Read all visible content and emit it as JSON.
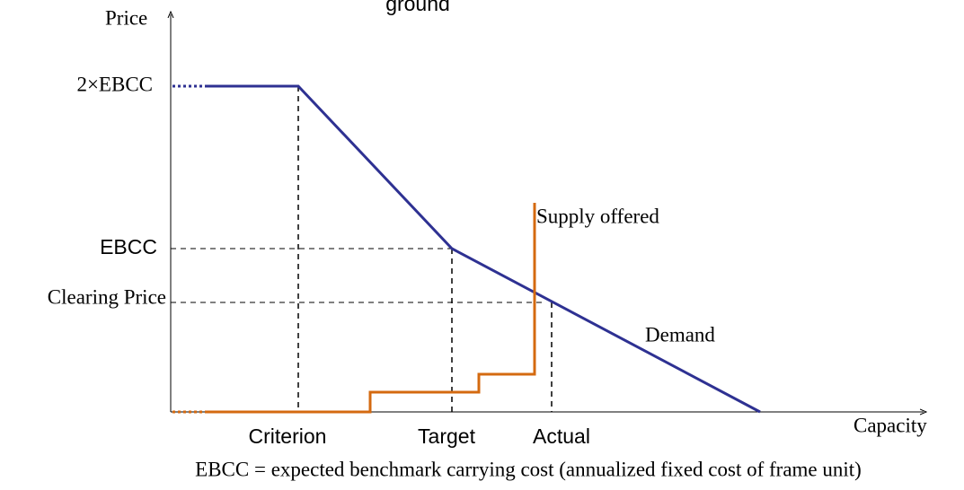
{
  "title": "ground",
  "axes": {
    "y_label": "Price",
    "x_label": "Capacity"
  },
  "price_levels": [
    "2×EBCC",
    "EBCC",
    "Clearing Price"
  ],
  "capacity_levels": [
    "Criterion",
    "Target",
    "Actual"
  ],
  "curves": {
    "supply": "Supply offered",
    "demand": "Demand"
  },
  "footnote": "EBCC = expected benchmark carrying cost (annualized fixed cost of frame unit)"
}
